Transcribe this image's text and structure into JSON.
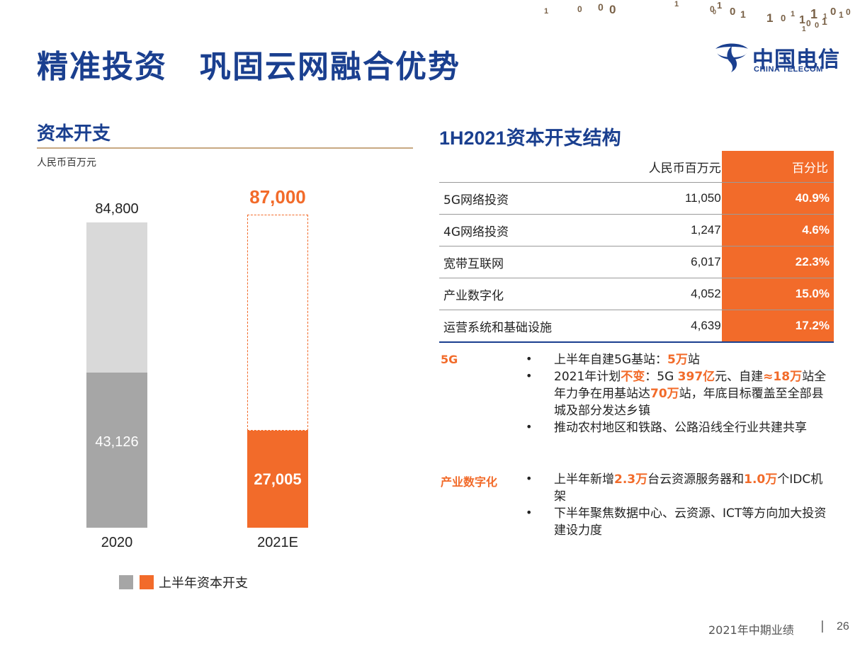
{
  "header": {
    "title": "精准投资　巩固云网融合优势",
    "logo_cn": "中国电信",
    "logo_en": "CHINA TELECOM",
    "decoration_digits": [
      "1",
      "0",
      "0",
      "0",
      "1",
      "0",
      "1",
      "0",
      "1",
      "1",
      "0",
      "1",
      "1",
      "0",
      "1",
      "1",
      "0",
      "1",
      "0",
      "1",
      "0",
      "1",
      "0"
    ]
  },
  "left": {
    "title": "资本开支",
    "unit": "人民币百万元",
    "legend_label": "上半年资本开支",
    "legend_colors": [
      "#a6a6a6",
      "#f26b2a"
    ]
  },
  "chart_data": {
    "type": "bar",
    "categories": [
      "2020",
      "2021E"
    ],
    "series": [
      {
        "name": "上半年资本开支",
        "values": [
          43126,
          27005
        ]
      },
      {
        "values": [
          84800,
          87000
        ]
      }
    ],
    "total_labels": [
      "84,800",
      "87,000"
    ],
    "h1_labels": [
      "43,126",
      "27,005"
    ],
    "ylim": [
      0,
      87000
    ],
    "colors": {
      "2020_total": "#d9d9d9",
      "2020_h1": "#a6a6a6",
      "2021_h1": "#f26b2a",
      "2021_total_outline": "#f26b2a"
    }
  },
  "right": {
    "title": "1H2021资本开支结构",
    "table": {
      "headers": [
        "",
        "人民币百万元",
        "百分比"
      ],
      "rows": [
        {
          "name": "5G网络投资",
          "value": "11,050",
          "pct": "40.9%"
        },
        {
          "name": "4G网络投资",
          "value": "1,247",
          "pct": "4.6%"
        },
        {
          "name": "宽带互联网",
          "value": "6,017",
          "pct": "22.3%"
        },
        {
          "name": "产业数字化",
          "value": "4,052",
          "pct": "15.0%"
        },
        {
          "name": "运营系统和基础设施",
          "value": "4,639",
          "pct": "17.2%"
        }
      ]
    },
    "sections": [
      {
        "label": "5G",
        "bullets": [
          {
            "parts": [
              {
                "t": "上半年自建5G基站："
              },
              {
                "t": "5万",
                "hl": true
              },
              {
                "t": "站"
              }
            ]
          },
          {
            "parts": [
              {
                "t": "2021年计划"
              },
              {
                "t": "不变",
                "hl": true
              },
              {
                "t": "：5G  "
              },
              {
                "t": "397亿",
                "hl": true
              },
              {
                "t": "元、自建"
              },
              {
                "t": "≈18万",
                "hl": true
              },
              {
                "t": "站全年力争在用基站达"
              },
              {
                "t": "70万",
                "hl": true
              },
              {
                "t": "站，年底目标覆盖至全部县城及部分发达乡镇"
              }
            ]
          },
          {
            "parts": [
              {
                "t": "推动农村地区和铁路、公路沿线全行业共建共享"
              }
            ]
          }
        ]
      },
      {
        "label": "产业数字化",
        "bullets": [
          {
            "parts": [
              {
                "t": "上半年新增"
              },
              {
                "t": "2.3万",
                "hl": true
              },
              {
                "t": "台云资源服务器和"
              },
              {
                "t": "1.0万",
                "hl": true
              },
              {
                "t": "个IDC机架"
              }
            ]
          },
          {
            "parts": [
              {
                "t": "下半年聚焦数据中心、云资源、ICT等方向加大投资建设力度"
              }
            ]
          }
        ]
      }
    ]
  },
  "footer": {
    "text": "2021年中期业绩",
    "separator": "|",
    "page": "26"
  }
}
